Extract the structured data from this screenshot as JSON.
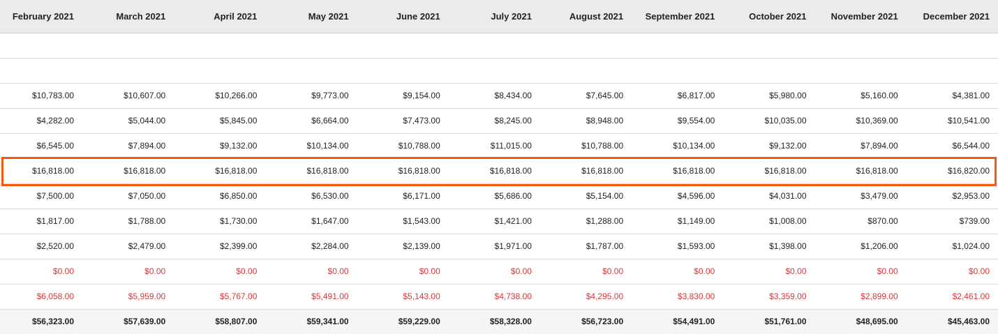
{
  "headers": [
    "February 2021",
    "March 2021",
    "April 2021",
    "May 2021",
    "June 2021",
    "July 2021",
    "August 2021",
    "September 2021",
    "October 2021",
    "November 2021",
    "December 2021"
  ],
  "rows": [
    {
      "style": "blank",
      "values": [
        "",
        "",
        "",
        "",
        "",
        "",
        "",
        "",
        "",
        "",
        ""
      ]
    },
    {
      "style": "blank",
      "values": [
        "",
        "",
        "",
        "",
        "",
        "",
        "",
        "",
        "",
        "",
        ""
      ]
    },
    {
      "style": "normal",
      "values": [
        "$10,783.00",
        "$10,607.00",
        "$10,266.00",
        "$9,773.00",
        "$9,154.00",
        "$8,434.00",
        "$7,645.00",
        "$6,817.00",
        "$5,980.00",
        "$5,160.00",
        "$4,381.00"
      ]
    },
    {
      "style": "normal",
      "values": [
        "$4,282.00",
        "$5,044.00",
        "$5,845.00",
        "$6,664.00",
        "$7,473.00",
        "$8,245.00",
        "$8,948.00",
        "$9,554.00",
        "$10,035.00",
        "$10,369.00",
        "$10,541.00"
      ]
    },
    {
      "style": "normal",
      "values": [
        "$6,545.00",
        "$7,894.00",
        "$9,132.00",
        "$10,134.00",
        "$10,788.00",
        "$11,015.00",
        "$10,788.00",
        "$10,134.00",
        "$9,132.00",
        "$7,894.00",
        "$6,544.00"
      ]
    },
    {
      "style": "highlighted",
      "values": [
        "$16,818.00",
        "$16,818.00",
        "$16,818.00",
        "$16,818.00",
        "$16,818.00",
        "$16,818.00",
        "$16,818.00",
        "$16,818.00",
        "$16,818.00",
        "$16,818.00",
        "$16,820.00"
      ]
    },
    {
      "style": "normal",
      "values": [
        "$7,500.00",
        "$7,050.00",
        "$6,850.00",
        "$6,530.00",
        "$6,171.00",
        "$5,686.00",
        "$5,154.00",
        "$4,596.00",
        "$4,031.00",
        "$3,479.00",
        "$2,953.00"
      ]
    },
    {
      "style": "normal",
      "values": [
        "$1,817.00",
        "$1,788.00",
        "$1,730.00",
        "$1,647.00",
        "$1,543.00",
        "$1,421.00",
        "$1,288.00",
        "$1,149.00",
        "$1,008.00",
        "$870.00",
        "$739.00"
      ]
    },
    {
      "style": "normal",
      "values": [
        "$2,520.00",
        "$2,479.00",
        "$2,399.00",
        "$2,284.00",
        "$2,139.00",
        "$1,971.00",
        "$1,787.00",
        "$1,593.00",
        "$1,398.00",
        "$1,206.00",
        "$1,024.00"
      ]
    },
    {
      "style": "red",
      "values": [
        "$0.00",
        "$0.00",
        "$0.00",
        "$0.00",
        "$0.00",
        "$0.00",
        "$0.00",
        "$0.00",
        "$0.00",
        "$0.00",
        "$0.00"
      ]
    },
    {
      "style": "red",
      "values": [
        "$6,058.00",
        "$5,959.00",
        "$5,767.00",
        "$5,491.00",
        "$5,143.00",
        "$4,738.00",
        "$4,295.00",
        "$3,830.00",
        "$3,359.00",
        "$2,899.00",
        "$2,461.00"
      ]
    },
    {
      "style": "total",
      "values": [
        "$56,323.00",
        "$57,639.00",
        "$58,807.00",
        "$59,341.00",
        "$59,229.00",
        "$58,328.00",
        "$56,723.00",
        "$54,491.00",
        "$51,761.00",
        "$48,695.00",
        "$45,463.00"
      ]
    }
  ],
  "colors": {
    "header_bg": "#ebebeb",
    "negative_text": "#d9353a",
    "highlight_border": "#f25a0f",
    "total_bg": "#f5f5f5"
  }
}
